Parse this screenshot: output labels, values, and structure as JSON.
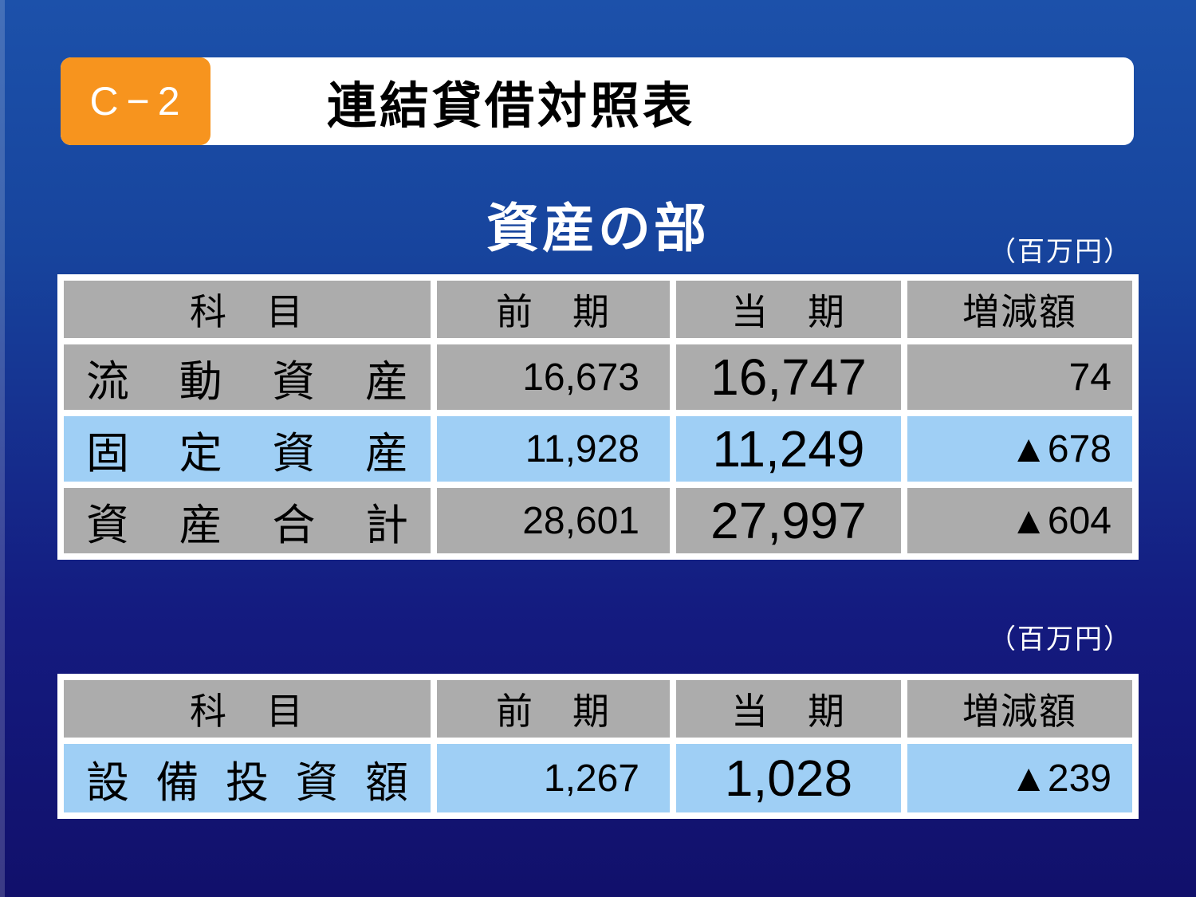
{
  "header": {
    "tag": "C−2",
    "title": "連結貸借対照表"
  },
  "section_title": "資産の部",
  "unit_labels": {
    "assets": "（百万円）",
    "capex": "（百万円）"
  },
  "assets_table": {
    "columns": {
      "item": "科　目",
      "previous": "前　期",
      "current": "当　期",
      "change": "増減額"
    },
    "rows": [
      {
        "label": "流動資産",
        "previous": "16,673",
        "current": "16,747",
        "change": "74"
      },
      {
        "label": "固定資産",
        "previous": "11,928",
        "current": "11,249",
        "change": "▲678"
      },
      {
        "label": "資産合計",
        "previous": "28,601",
        "current": "27,997",
        "change": "▲604"
      }
    ]
  },
  "capex_table": {
    "columns": {
      "item": "科　目",
      "previous": "前　期",
      "current": "当　期",
      "change": "増減額"
    },
    "rows": [
      {
        "label": "設備投資額",
        "previous": "1,267",
        "current": "1,028",
        "change": "▲239"
      }
    ]
  },
  "colors": {
    "accent_orange": "#F7941E",
    "cell_gray": "#ACACAC",
    "highlight_blue": "#9FCFF5",
    "background_top": "#1C51AA",
    "background_bottom": "#11106B",
    "negative_marker": "▲"
  }
}
